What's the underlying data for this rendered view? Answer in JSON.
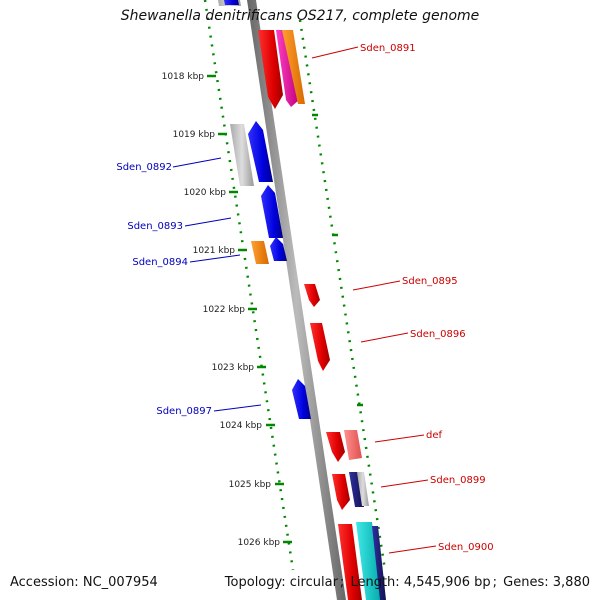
{
  "title": "Shewanella denitrificans OS217, complete genome",
  "footer": {
    "accession_label": "Accession:",
    "accession": "NC_007954",
    "topology_label": "Topology:",
    "topology": "circular",
    "length_label": "Length:",
    "length": "4,545,906 bp",
    "genes_label": "Genes:",
    "genes": "3,880"
  },
  "ruler": {
    "ticks": [
      "1018 kbp",
      "1019 kbp",
      "1020 kbp",
      "1021 kbp",
      "1022 kbp",
      "1023 kbp",
      "1024 kbp",
      "1025 kbp",
      "1026 kbp"
    ]
  },
  "genes": [
    {
      "name": "Sden_0891",
      "strand": "+",
      "color": "#dd0000"
    },
    {
      "name": "Sden_0892",
      "strand": "-",
      "color": "#0000cc"
    },
    {
      "name": "Sden_0893",
      "strand": "-",
      "color": "#0000cc"
    },
    {
      "name": "Sden_0894",
      "strand": "-",
      "color": "#0000cc"
    },
    {
      "name": "Sden_0895",
      "strand": "+",
      "color": "#dd0000"
    },
    {
      "name": "Sden_0896",
      "strand": "+",
      "color": "#dd0000"
    },
    {
      "name": "Sden_0897",
      "strand": "-",
      "color": "#0000cc"
    },
    {
      "name": "def",
      "strand": "+",
      "color": "#dd0000"
    },
    {
      "name": "Sden_0899",
      "strand": "+",
      "color": "#dd0000"
    },
    {
      "name": "Sden_0900",
      "strand": "+",
      "color": "#dd0000"
    }
  ],
  "colors": {
    "forward": "#dd0000",
    "reverse": "#0000cc",
    "backbone": "#888888",
    "ruler": "#008800",
    "label_forward": "#cc0000",
    "label_reverse": "#0000bb"
  }
}
